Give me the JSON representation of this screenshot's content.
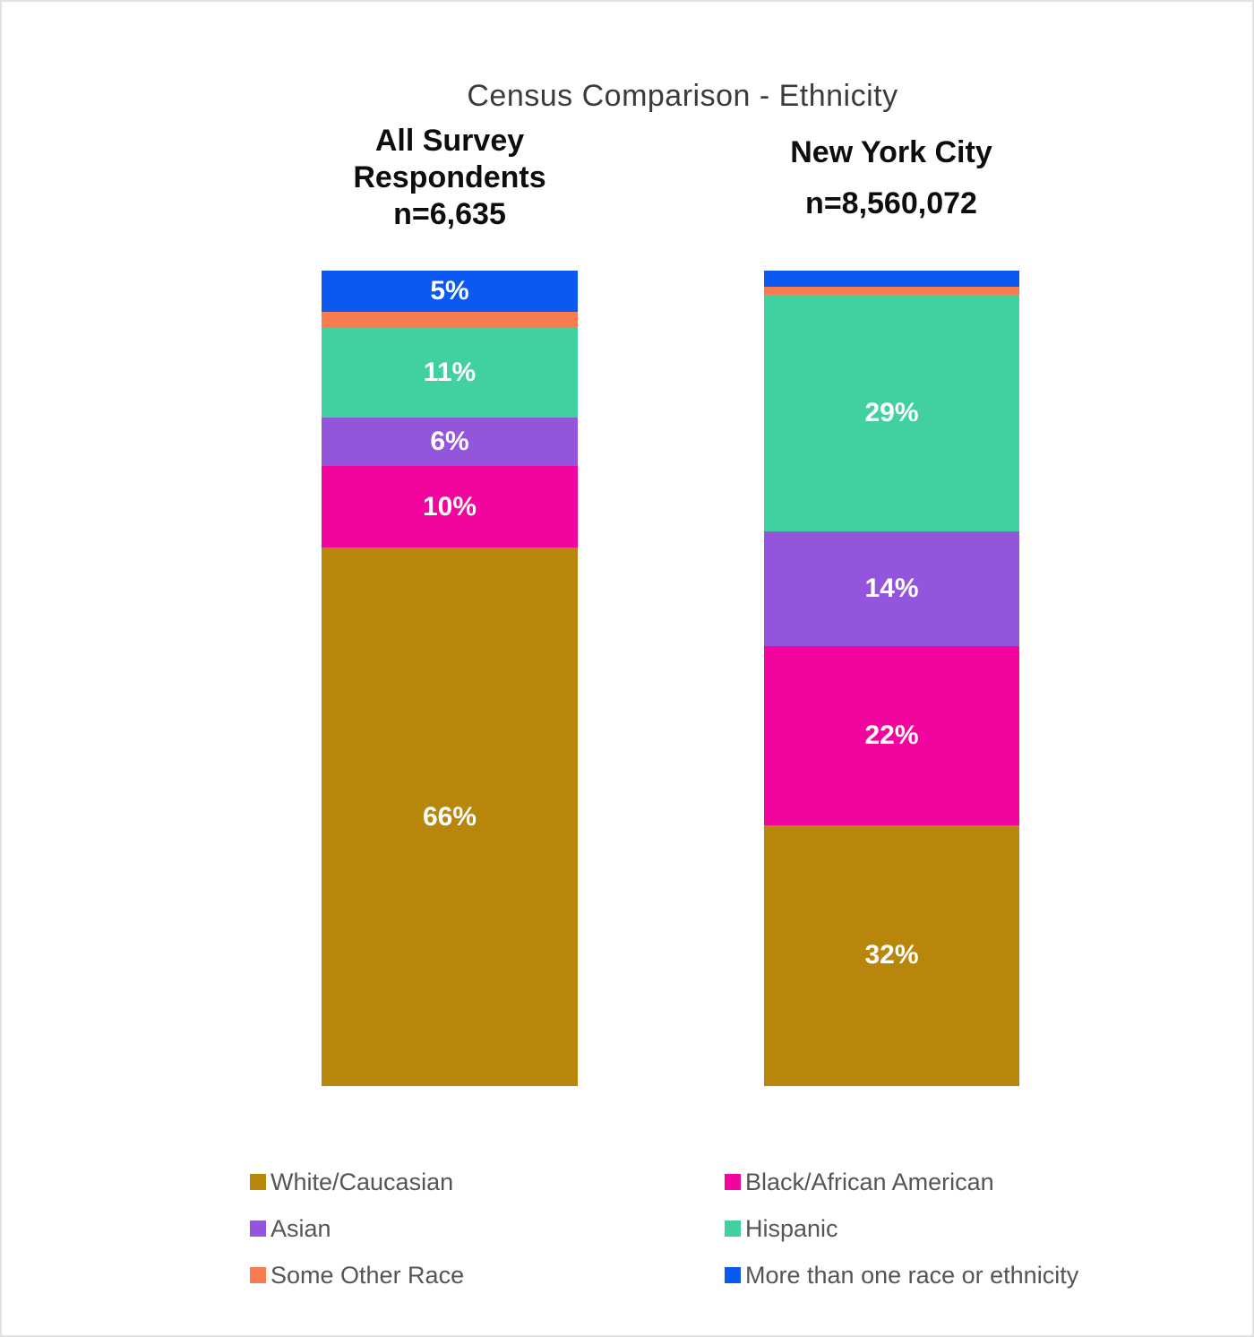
{
  "title": "Census Comparison - Ethnicity",
  "page": {
    "background": "#FFFFFF",
    "border_color": "#E3E3E3"
  },
  "colors": {
    "white_caucasian": "#B8860B",
    "black_african_american": "#F1059E",
    "asian": "#9355DB",
    "hispanic": "#41D19E",
    "some_other_race": "#F97C4E",
    "more_than_one": "#0B59F0"
  },
  "chart_data": {
    "type": "bar",
    "subtype": "100%-stacked-column",
    "title": "Census Comparison - Ethnicity",
    "categories": [
      "All Survey Respondents n=6,635",
      "New York City n=8,560,072"
    ],
    "series": [
      {
        "name": "White/Caucasian",
        "color_key": "white_caucasian",
        "values": [
          66,
          32
        ]
      },
      {
        "name": "Black/African American",
        "color_key": "black_african_american",
        "values": [
          10,
          22
        ]
      },
      {
        "name": "Asian",
        "color_key": "asian",
        "values": [
          6,
          14
        ]
      },
      {
        "name": "Hispanic",
        "color_key": "hispanic",
        "values": [
          11,
          29
        ]
      },
      {
        "name": "Some Other Race",
        "color_key": "some_other_race",
        "values": [
          2,
          1
        ]
      },
      {
        "name": "More than one race or ethnicity",
        "color_key": "more_than_one",
        "values": [
          5,
          2
        ]
      }
    ],
    "stack_order_top_to_bottom": [
      "More than one race or ethnicity",
      "Some Other Race",
      "Hispanic",
      "Asian",
      "Black/African American",
      "White/Caucasian"
    ],
    "ylim": [
      0,
      100
    ],
    "grid": false,
    "legend_position": "bottom"
  },
  "bars": [
    {
      "name": "all-survey-respondents",
      "header_lines": [
        "All Survey",
        "Respondents",
        "n=6,635"
      ],
      "segments_top_to_bottom": [
        {
          "series": "More than one race or ethnicity",
          "color_key": "more_than_one",
          "pct": 5,
          "label": "5%"
        },
        {
          "series": "Some Other Race",
          "color_key": "some_other_race",
          "pct": 2,
          "label": ""
        },
        {
          "series": "Hispanic",
          "color_key": "hispanic",
          "pct": 11,
          "label": "11%"
        },
        {
          "series": "Asian",
          "color_key": "asian",
          "pct": 6,
          "label": "6%"
        },
        {
          "series": "Black/African American",
          "color_key": "black_african_american",
          "pct": 10,
          "label": "10%"
        },
        {
          "series": "White/Caucasian",
          "color_key": "white_caucasian",
          "pct": 66,
          "label": "66%"
        }
      ]
    },
    {
      "name": "new-york-city",
      "header_lines": [
        "New York City",
        "n=8,560,072"
      ],
      "segments_top_to_bottom": [
        {
          "series": "More than one race or ethnicity",
          "color_key": "more_than_one",
          "pct": 2,
          "label": ""
        },
        {
          "series": "Some Other Race",
          "color_key": "some_other_race",
          "pct": 1,
          "label": ""
        },
        {
          "series": "Hispanic",
          "color_key": "hispanic",
          "pct": 29,
          "label": "29%"
        },
        {
          "series": "Asian",
          "color_key": "asian",
          "pct": 14,
          "label": "14%"
        },
        {
          "series": "Black/African American",
          "color_key": "black_african_american",
          "pct": 22,
          "label": "22%"
        },
        {
          "series": "White/Caucasian",
          "color_key": "white_caucasian",
          "pct": 32,
          "label": "32%"
        }
      ]
    }
  ],
  "legend": {
    "text_color": "#555555",
    "columns": [
      [
        {
          "label": "White/Caucasian",
          "color_key": "white_caucasian"
        },
        {
          "label": "Asian",
          "color_key": "asian"
        },
        {
          "label": "Some Other Race",
          "color_key": "some_other_race"
        }
      ],
      [
        {
          "label": "Black/African American",
          "color_key": "black_african_american"
        },
        {
          "label": "Hispanic",
          "color_key": "hispanic"
        },
        {
          "label": "More than one race or ethnicity",
          "color_key": "more_than_one"
        }
      ]
    ]
  }
}
